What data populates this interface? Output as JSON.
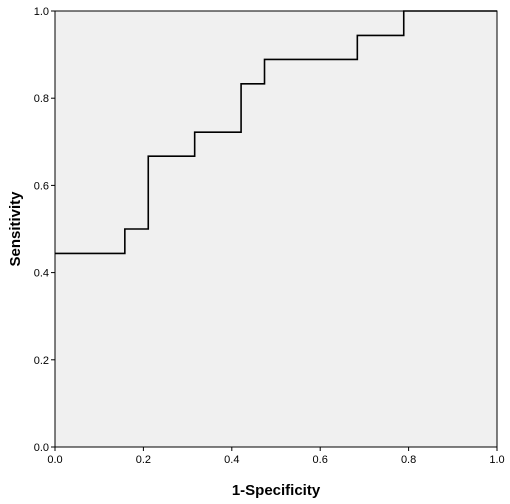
{
  "chart_data": {
    "type": "line",
    "title": "",
    "xlabel": "1-Specificity",
    "ylabel": "Sensitivity",
    "xlim": [
      0.0,
      1.0
    ],
    "ylim": [
      0.0,
      1.0
    ],
    "x_ticks": [
      "0.0",
      "0.2",
      "0.4",
      "0.6",
      "0.8",
      "1.0"
    ],
    "y_ticks": [
      "0.0",
      "0.2",
      "0.4",
      "0.6",
      "0.8",
      "1.0"
    ],
    "grid": false,
    "legend": "none",
    "series": [
      {
        "step": true,
        "color": "#000000",
        "x": [
          0.0,
          0.158,
          0.158,
          0.211,
          0.211,
          0.316,
          0.316,
          0.421,
          0.421,
          0.474,
          0.474,
          0.684,
          0.684,
          0.789,
          0.789,
          1.0
        ],
        "y": [
          0.444,
          0.444,
          0.5,
          0.5,
          0.667,
          0.667,
          0.722,
          0.722,
          0.833,
          0.833,
          0.889,
          0.889,
          0.944,
          0.944,
          1.0,
          1.0
        ]
      }
    ],
    "colors": {
      "plot_background": "#f0f0f0",
      "frame": "#000000",
      "line": "#000000"
    }
  }
}
